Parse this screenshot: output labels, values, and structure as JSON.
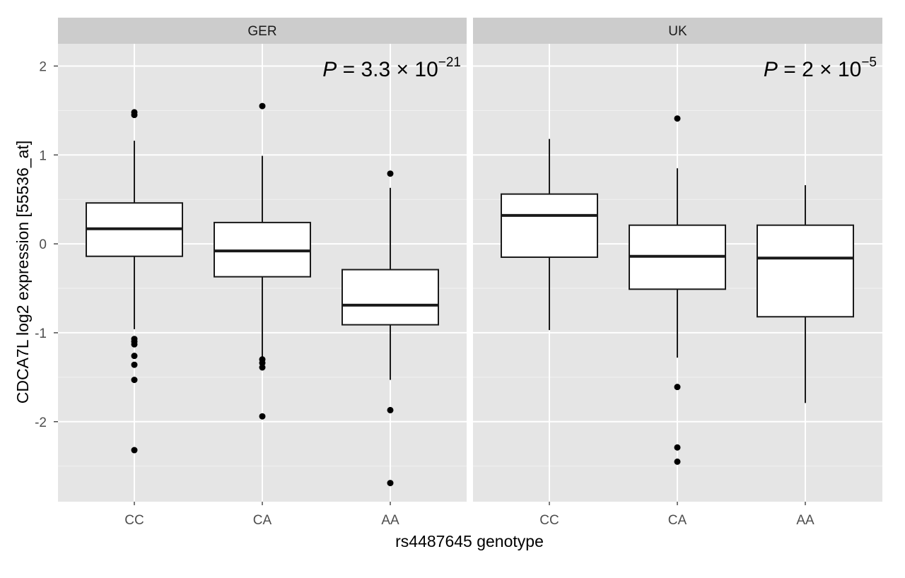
{
  "chart_data": {
    "type": "box",
    "ylabel": "CDCA7L log2 expression [55536_at]",
    "xlabel": "rs4487645 genotype",
    "categories": [
      "CC",
      "CA",
      "AA"
    ],
    "ylim": [
      -2.9,
      2.25
    ],
    "yticks": [
      -2,
      -1,
      0,
      1,
      2
    ],
    "ytick_labels": [
      "-2",
      "-1",
      "0",
      "1",
      "2"
    ],
    "grid": true,
    "colors": {
      "panel_bg": "#e5e5e5",
      "strip_bg": "#cccccc",
      "grid": "#ffffff",
      "box_fill": "#ffffff",
      "box_line": "#1a1a1a"
    },
    "facets": [
      {
        "name": "GER",
        "annotation": {
          "lead": "P",
          "eq": " = 3.3 × 10",
          "exp": "−21"
        },
        "boxes": [
          {
            "category": "CC",
            "q1": -0.14,
            "median": 0.17,
            "q3": 0.46,
            "whisker_low": -0.96,
            "whisker_high": 1.16,
            "outliers": [
              1.48,
              1.45,
              -1.07,
              -1.1,
              -1.13,
              -1.26,
              -1.36,
              -1.53,
              -2.32
            ]
          },
          {
            "category": "CA",
            "q1": -0.37,
            "median": -0.08,
            "q3": 0.24,
            "whisker_low": -1.28,
            "whisker_high": 0.99,
            "outliers": [
              1.55,
              -1.3,
              -1.34,
              -1.39,
              -1.94
            ]
          },
          {
            "category": "AA",
            "q1": -0.91,
            "median": -0.69,
            "q3": -0.29,
            "whisker_low": -1.53,
            "whisker_high": 0.63,
            "outliers": [
              0.79,
              -1.87,
              -2.69
            ]
          }
        ]
      },
      {
        "name": "UK",
        "annotation": {
          "lead": "P",
          "eq": " = 2 × 10",
          "exp": "−5"
        },
        "boxes": [
          {
            "category": "CC",
            "q1": -0.15,
            "median": 0.32,
            "q3": 0.56,
            "whisker_low": -0.97,
            "whisker_high": 1.18,
            "outliers": []
          },
          {
            "category": "CA",
            "q1": -0.51,
            "median": -0.14,
            "q3": 0.21,
            "whisker_low": -1.28,
            "whisker_high": 0.85,
            "outliers": [
              1.41,
              -1.61,
              -2.29,
              -2.45
            ]
          },
          {
            "category": "AA",
            "q1": -0.82,
            "median": -0.16,
            "q3": 0.21,
            "whisker_low": -1.79,
            "whisker_high": 0.66,
            "outliers": []
          }
        ]
      }
    ]
  }
}
